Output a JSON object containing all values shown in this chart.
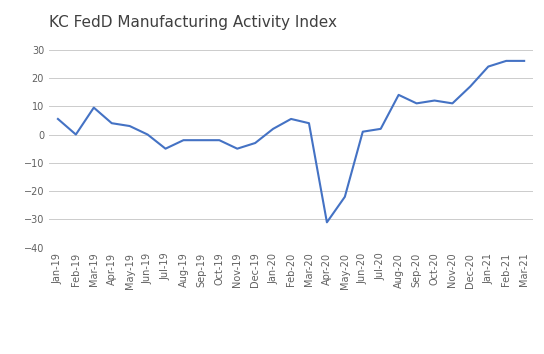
{
  "title": "KC FedD Manufacturing Activity Index",
  "labels": [
    "Jan-19",
    "Feb-19",
    "Mar-19",
    "Apr-19",
    "May-19",
    "Jun-19",
    "Jul-19",
    "Aug-19",
    "Sep-19",
    "Oct-19",
    "Nov-19",
    "Dec-19",
    "Jan-20",
    "Feb-20",
    "Mar-20",
    "Apr-20",
    "May-20",
    "Jun-20",
    "Jul-20",
    "Aug-20",
    "Sep-20",
    "Oct-20",
    "Nov-20",
    "Dec-20",
    "Jan-21",
    "Feb-21",
    "Mar-21"
  ],
  "values": [
    5.5,
    0,
    9.5,
    4,
    3,
    0,
    -5,
    -2,
    -2,
    -2,
    -5,
    -3,
    2,
    5.5,
    4,
    -31,
    -22,
    1,
    2,
    14,
    11,
    12,
    11,
    17,
    24,
    26,
    26
  ],
  "line_color": "#4472c4",
  "line_width": 1.5,
  "ylim": [
    -40,
    35
  ],
  "yticks": [
    -40,
    -30,
    -20,
    -10,
    0,
    10,
    20,
    30
  ],
  "background_color": "#ffffff",
  "grid_color": "#cccccc",
  "title_fontsize": 11,
  "tick_fontsize": 7,
  "title_color": "#404040",
  "tick_color": "#606060"
}
